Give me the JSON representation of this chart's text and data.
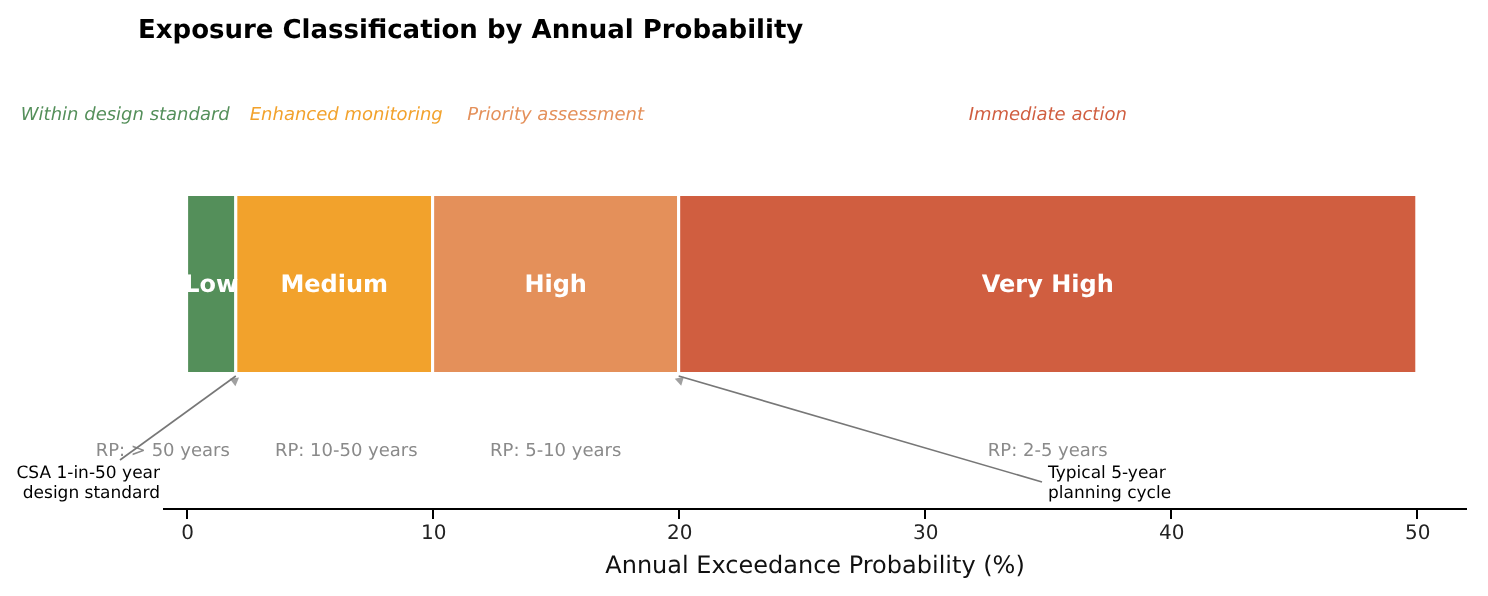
{
  "chart_data": {
    "type": "bar",
    "orientation": "horizontal",
    "stacked": true,
    "title": "Exposure Classification by Annual Probability",
    "xlabel": "Annual Exceedance Probability (%)",
    "categories": [
      null
    ],
    "tick_labels": "x",
    "series": [
      {
        "name": "Low",
        "color": "#548f5a",
        "values": [
          2
        ]
      },
      {
        "name": "Medium",
        "color": "#f2a22c",
        "values": [
          8
        ]
      },
      {
        "name": "High",
        "color": "#e4905a",
        "values": [
          10
        ]
      },
      {
        "name": "Very High",
        "color": "#d05e40",
        "values": [
          30
        ]
      }
    ],
    "xlim": [
      -1,
      52
    ],
    "xticks": [
      0,
      10,
      20,
      30,
      40,
      50
    ],
    "annotations": [
      "Within design standard",
      "Enhanced monitoring",
      "Priority assessment",
      "Immediate action",
      "RP: > 50 years",
      "RP: 10-50 years",
      "RP: 5-10 years",
      "RP: 2-5 years",
      "CSA 1-in-50 year\ndesign standard",
      "Typical 5-year\nplanning cycle"
    ]
  }
}
